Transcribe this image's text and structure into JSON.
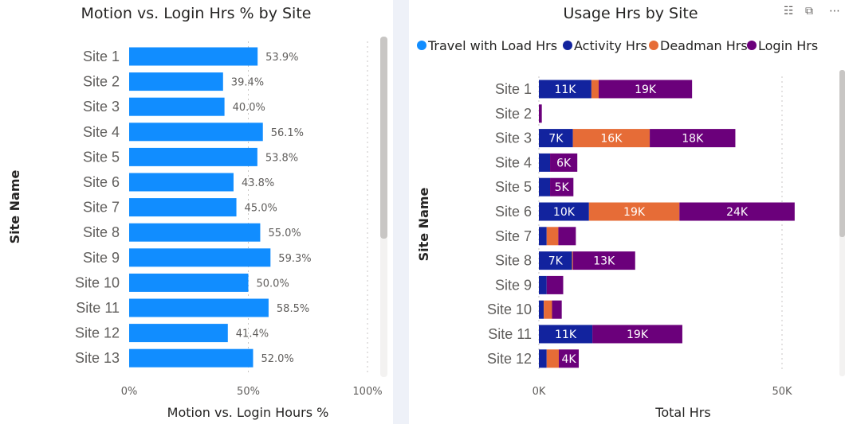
{
  "colors": {
    "bar_blue": "#118dff",
    "travel": "#118dff",
    "activity": "#12239e",
    "deadman": "#e66c37",
    "login": "#6b007b"
  },
  "icons": [
    "filter-icon",
    "focus-mode-icon",
    "more-options-icon"
  ],
  "chart_data": [
    {
      "type": "bar",
      "orientation": "horizontal",
      "title": "Motion vs. Login Hrs % by Site",
      "xlabel": "Motion vs. Login Hours %",
      "ylabel": "Site Name",
      "xlim": [
        0,
        100
      ],
      "x_ticks": [
        "0%",
        "50%",
        "100%"
      ],
      "grid": true,
      "categories": [
        "Site  1",
        "Site  2",
        "Site  3",
        "Site  4",
        "Site  5",
        "Site  6",
        "Site  7",
        "Site  8",
        "Site  9",
        "Site  10",
        "Site  11",
        "Site  12",
        "Site  13"
      ],
      "values": [
        53.9,
        39.4,
        40.0,
        56.1,
        53.8,
        43.8,
        45.0,
        55.0,
        59.3,
        50.0,
        58.5,
        41.4,
        52.0
      ],
      "value_labels": [
        "53.9%",
        "39.4%",
        "40.0%",
        "56.1%",
        "53.8%",
        "43.8%",
        "45.0%",
        "55.0%",
        "59.3%",
        "50.0%",
        "58.5%",
        "41.4%",
        "52.0%"
      ]
    },
    {
      "type": "bar",
      "orientation": "horizontal",
      "stacked": true,
      "title": "Usage Hrs by Site",
      "xlabel": "Total Hrs",
      "ylabel": "Site Name",
      "xlim": [
        0,
        58000
      ],
      "x_ticks": [
        {
          "value": 0,
          "label": "0K"
        },
        {
          "value": 50000,
          "label": "50K"
        }
      ],
      "grid": true,
      "legend_position": "top",
      "categories": [
        "Site 1",
        "Site 2",
        "Site 3",
        "Site 4",
        "Site 5",
        "Site 6",
        "Site 7",
        "Site 8",
        "Site 9",
        "Site 10",
        "Site 11",
        "Site 12"
      ],
      "series": [
        {
          "name": "Travel with Load Hrs",
          "color": "#118dff",
          "values": [
            0,
            0,
            0,
            0,
            0,
            0,
            0,
            0,
            0,
            0,
            0,
            0
          ],
          "labels": [
            "",
            "",
            "",
            "",
            "",
            "",
            "",
            "",
            "",
            "",
            "",
            ""
          ]
        },
        {
          "name": "Activity Hrs",
          "color": "#12239e",
          "values": [
            10800,
            0,
            7000,
            2300,
            2300,
            10300,
            1600,
            6800,
            1600,
            1000,
            11000,
            1600
          ],
          "labels": [
            "11K",
            "",
            "7K",
            "",
            "",
            "10K",
            "",
            "7K",
            "",
            "",
            "11K",
            ""
          ]
        },
        {
          "name": "Deadman Hrs",
          "color": "#e66c37",
          "values": [
            1500,
            0,
            15800,
            0,
            0,
            18600,
            2400,
            200,
            0,
            1700,
            0,
            2500
          ],
          "labels": [
            "",
            "",
            "16K",
            "",
            "",
            "19K",
            "",
            "",
            "",
            "",
            "",
            ""
          ]
        },
        {
          "name": "Login Hrs",
          "color": "#6b007b",
          "values": [
            19200,
            600,
            17600,
            5600,
            4800,
            23700,
            3600,
            12800,
            3400,
            2000,
            18500,
            4100
          ],
          "labels": [
            "19K",
            "",
            "18K",
            "6K",
            "5K",
            "24K",
            "",
            "13K",
            "",
            "",
            "19K",
            "4K"
          ]
        }
      ]
    }
  ]
}
